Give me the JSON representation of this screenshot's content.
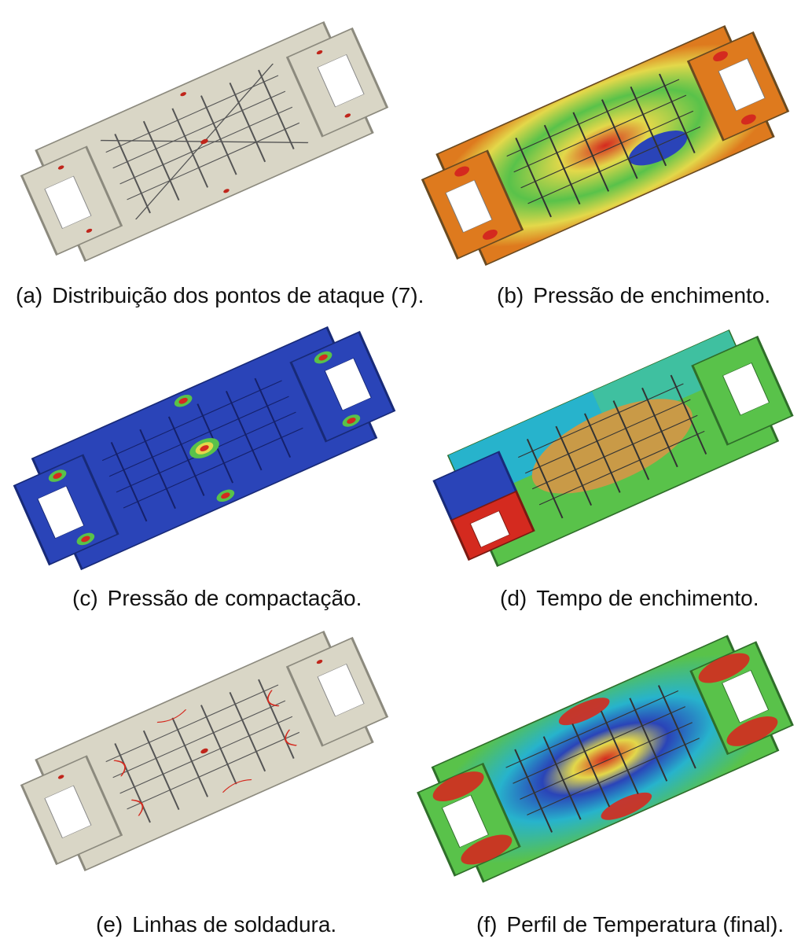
{
  "figure": {
    "panels": [
      {
        "tag": "(a)",
        "caption": "Distribuição dos pontos de ataque (7).",
        "scheme": "plain"
      },
      {
        "tag": "(b)",
        "caption": "Pressão de enchimento.",
        "scheme": "fill-pressure"
      },
      {
        "tag": "(c)",
        "caption": "Pressão de compactação.",
        "scheme": "pack-pressure"
      },
      {
        "tag": "(d)",
        "caption": "Tempo de enchimento.",
        "scheme": "fill-time"
      },
      {
        "tag": "(e)",
        "caption": "Linhas de soldadura.",
        "scheme": "weld-lines"
      },
      {
        "tag": "(f)",
        "caption": "Perfil de Temperatura (final).",
        "scheme": "temperature"
      }
    ],
    "colors": {
      "plain": "#d9d6c6",
      "red": "#d42a1f",
      "orange": "#de7a1e",
      "yellow": "#e3d84a",
      "green": "#59c24a",
      "cyan": "#27b3cc",
      "blue": "#2a44b8",
      "tan": "#c99a47"
    }
  }
}
